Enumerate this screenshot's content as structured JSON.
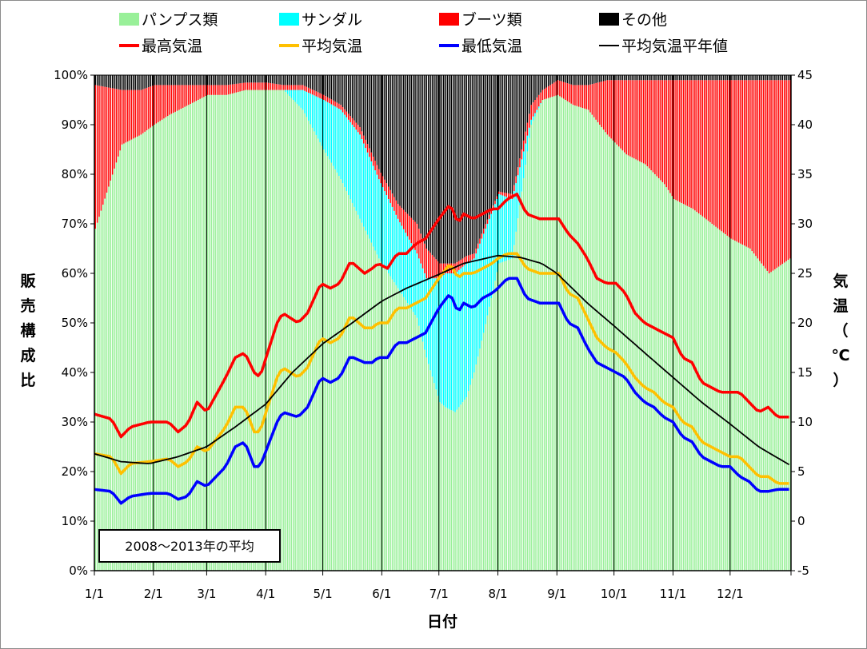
{
  "chart_data": {
    "type": "bar+line",
    "note": "2008～2013年の平均",
    "xlabel": "日付",
    "ylabel_left": "販売構成比",
    "ylabel_right": "気温（℃）",
    "x_ticks": [
      "1/1",
      "2/1",
      "3/1",
      "4/1",
      "5/1",
      "6/1",
      "7/1",
      "8/1",
      "9/1",
      "10/1",
      "11/1",
      "12/1"
    ],
    "x_tick_days": [
      1,
      32,
      60,
      91,
      121,
      152,
      182,
      213,
      244,
      274,
      305,
      335
    ],
    "days_in_year": 366,
    "left_axis": {
      "ticks": [
        "0%",
        "10%",
        "20%",
        "30%",
        "40%",
        "50%",
        "60%",
        "70%",
        "80%",
        "90%",
        "100%"
      ],
      "min": 0,
      "max": 100
    },
    "right_axis": {
      "ticks": [
        "-5",
        "0",
        "5",
        "10",
        "15",
        "20",
        "25",
        "30",
        "35",
        "40",
        "45"
      ],
      "min": -5,
      "max": 45
    },
    "grid": "vertical lines at month starts",
    "legend_position": "top",
    "stack_series": [
      {
        "name": "パンプス類",
        "color": "#99f099",
        "x": [
          1,
          15,
          25,
          32,
          40,
          50,
          60,
          70,
          80,
          91,
          100,
          110,
          121,
          130,
          140,
          150,
          160,
          170,
          175,
          182,
          185,
          190,
          196,
          200,
          205,
          213,
          220,
          230,
          236,
          244,
          252,
          260,
          270,
          280,
          290,
          300,
          305,
          315,
          325,
          335,
          345,
          355,
          366
        ],
        "values": [
          69,
          86,
          88,
          90,
          92,
          94,
          96,
          96,
          97,
          97,
          97,
          93,
          85,
          79,
          71,
          63,
          57,
          51,
          43,
          34,
          33,
          32,
          35,
          40,
          48,
          62,
          63,
          90,
          95,
          96,
          94,
          93,
          88,
          84,
          82,
          78,
          75,
          73,
          70,
          67,
          65,
          60,
          63
        ]
      },
      {
        "name": "サンダル",
        "color": "#00ffff",
        "x": [
          1,
          60,
          91,
          100,
          110,
          121,
          130,
          140,
          150,
          160,
          170,
          175,
          182,
          185,
          190,
          196,
          200,
          205,
          213,
          220,
          230,
          236,
          244,
          252,
          260,
          270,
          366
        ],
        "values": [
          0,
          0,
          0,
          0,
          4,
          10,
          14,
          17,
          16,
          14,
          13,
          16,
          25,
          27,
          28,
          27,
          23,
          20,
          14,
          12,
          1,
          0,
          0,
          0,
          0,
          0,
          0
        ]
      },
      {
        "name": "ブーツ類",
        "color": "#ff0000",
        "x": [
          1,
          15,
          25,
          32,
          40,
          50,
          60,
          70,
          80,
          91,
          100,
          110,
          121,
          130,
          140,
          150,
          160,
          170,
          175,
          182,
          185,
          190,
          196,
          200,
          205,
          213,
          220,
          230,
          236,
          244,
          252,
          260,
          270,
          280,
          290,
          300,
          305,
          315,
          325,
          335,
          345,
          355,
          366
        ],
        "values": [
          29,
          11,
          9,
          8,
          6,
          4,
          2,
          2,
          1.5,
          1.5,
          1,
          1,
          1,
          1,
          1.5,
          2,
          3,
          6,
          6,
          3,
          2,
          2,
          1.5,
          1,
          1,
          0.5,
          1,
          3,
          2,
          3,
          4,
          5,
          11,
          15,
          17,
          21,
          24,
          26,
          29,
          32,
          34,
          39,
          36
        ]
      },
      {
        "name": "その他",
        "color": "#000000",
        "remainder_to": 100
      }
    ],
    "line_series": [
      {
        "name": "最高気温",
        "color": "#ff0000",
        "x": [
          1,
          10,
          15,
          20,
          30,
          40,
          45,
          50,
          55,
          60,
          70,
          75,
          80,
          85,
          88,
          92,
          97,
          100,
          108,
          113,
          120,
          125,
          130,
          135,
          137,
          143,
          147,
          150,
          155,
          160,
          165,
          170,
          175,
          182,
          188,
          192,
          195,
          200,
          205,
          210,
          213,
          218,
          223,
          228,
          235,
          240,
          245,
          250,
          255,
          260,
          265,
          270,
          275,
          280,
          285,
          290,
          295,
          300,
          305,
          310,
          315,
          320,
          325,
          330,
          335,
          340,
          345,
          350,
          355,
          360,
          366
        ],
        "values": [
          10.8,
          10.3,
          8.5,
          9.5,
          10.0,
          10.0,
          9.0,
          9.8,
          12.0,
          11.0,
          14.5,
          16.5,
          17.0,
          15.0,
          14.5,
          17.0,
          20.0,
          21.0,
          20.0,
          21.0,
          24.0,
          23.5,
          24.0,
          26.0,
          26.0,
          25.0,
          25.5,
          26.0,
          25.5,
          27.0,
          27.0,
          28.0,
          28.5,
          30.5,
          32.0,
          30.0,
          31.0,
          30.5,
          31.0,
          31.5,
          31.5,
          32.5,
          33.0,
          31.0,
          30.5,
          30.5,
          30.5,
          29.0,
          28.0,
          26.5,
          24.5,
          24.0,
          24.0,
          23.0,
          21.0,
          20.0,
          19.5,
          19.0,
          18.5,
          16.5,
          16.0,
          14.0,
          13.5,
          13.0,
          13.0,
          13.0,
          12.0,
          11.0,
          11.5,
          10.5,
          10.5
        ]
      },
      {
        "name": "平均気温",
        "color": "#ffc000",
        "x": [
          1,
          10,
          15,
          20,
          30,
          40,
          45,
          50,
          55,
          60,
          70,
          75,
          80,
          85,
          88,
          92,
          97,
          100,
          108,
          113,
          120,
          125,
          130,
          135,
          137,
          143,
          147,
          150,
          155,
          160,
          165,
          170,
          175,
          182,
          188,
          192,
          195,
          200,
          205,
          210,
          213,
          218,
          223,
          228,
          235,
          240,
          245,
          250,
          255,
          260,
          265,
          270,
          275,
          280,
          285,
          290,
          295,
          300,
          305,
          310,
          315,
          320,
          325,
          330,
          335,
          340,
          345,
          350,
          355,
          360,
          366
        ],
        "values": [
          6.8,
          6.5,
          4.8,
          5.8,
          6.0,
          6.3,
          5.5,
          6.0,
          7.5,
          7.0,
          9.5,
          11.5,
          11.5,
          9.0,
          9.0,
          11.5,
          14.5,
          15.5,
          14.5,
          15.5,
          18.5,
          18.0,
          18.5,
          20.5,
          20.5,
          19.5,
          19.5,
          20.0,
          20.0,
          21.5,
          21.5,
          22.0,
          22.5,
          24.5,
          26.0,
          24.5,
          25.0,
          25.0,
          25.5,
          26.0,
          26.5,
          27.0,
          27.0,
          25.5,
          25.0,
          25.0,
          25.0,
          23.0,
          22.5,
          20.5,
          18.5,
          17.5,
          17.0,
          16.0,
          14.5,
          13.5,
          13.0,
          12.0,
          11.5,
          10.0,
          9.5,
          8.0,
          7.5,
          7.0,
          6.5,
          6.5,
          5.5,
          4.5,
          4.5,
          3.8,
          3.8
        ]
      },
      {
        "name": "最低気温",
        "color": "#0000ff",
        "x": [
          1,
          10,
          15,
          20,
          30,
          40,
          45,
          50,
          55,
          60,
          70,
          75,
          80,
          85,
          88,
          92,
          97,
          100,
          108,
          113,
          120,
          125,
          130,
          135,
          137,
          143,
          147,
          150,
          155,
          160,
          165,
          170,
          175,
          182,
          188,
          192,
          195,
          200,
          205,
          210,
          213,
          218,
          223,
          228,
          235,
          240,
          245,
          250,
          255,
          260,
          265,
          270,
          275,
          280,
          285,
          290,
          295,
          300,
          305,
          310,
          315,
          320,
          325,
          330,
          335,
          340,
          345,
          350,
          355,
          360,
          366
        ],
        "values": [
          3.2,
          3.0,
          1.8,
          2.5,
          2.8,
          2.8,
          2.2,
          2.5,
          4.0,
          3.5,
          5.5,
          7.5,
          8.0,
          5.5,
          5.5,
          7.5,
          10.0,
          11.0,
          10.5,
          11.5,
          14.5,
          14.0,
          14.5,
          16.5,
          16.5,
          16.0,
          16.0,
          16.5,
          16.5,
          18.0,
          18.0,
          18.5,
          19.0,
          21.5,
          23.0,
          21.0,
          22.0,
          21.5,
          22.5,
          23.0,
          23.5,
          24.5,
          24.5,
          22.5,
          22.0,
          22.0,
          22.0,
          20.0,
          19.5,
          17.5,
          16.0,
          15.5,
          15.0,
          14.5,
          13.0,
          12.0,
          11.5,
          10.5,
          10.0,
          8.5,
          8.0,
          6.5,
          6.0,
          5.5,
          5.5,
          4.5,
          4.0,
          3.0,
          3.0,
          3.2,
          3.2
        ]
      },
      {
        "name": "平均気温平年値",
        "color": "#000000",
        "x": [
          1,
          15,
          30,
          45,
          60,
          75,
          91,
          105,
          121,
          135,
          152,
          165,
          182,
          195,
          213,
          225,
          236,
          244,
          260,
          274,
          290,
          305,
          320,
          335,
          350,
          366
        ],
        "values": [
          6.8,
          6.0,
          5.8,
          6.5,
          7.5,
          9.5,
          11.8,
          15.0,
          17.9,
          19.8,
          22.2,
          23.5,
          24.9,
          26.0,
          26.8,
          26.6,
          26.0,
          25.0,
          22.0,
          19.7,
          17.0,
          14.5,
          12.0,
          9.8,
          7.5,
          5.7
        ]
      }
    ]
  }
}
